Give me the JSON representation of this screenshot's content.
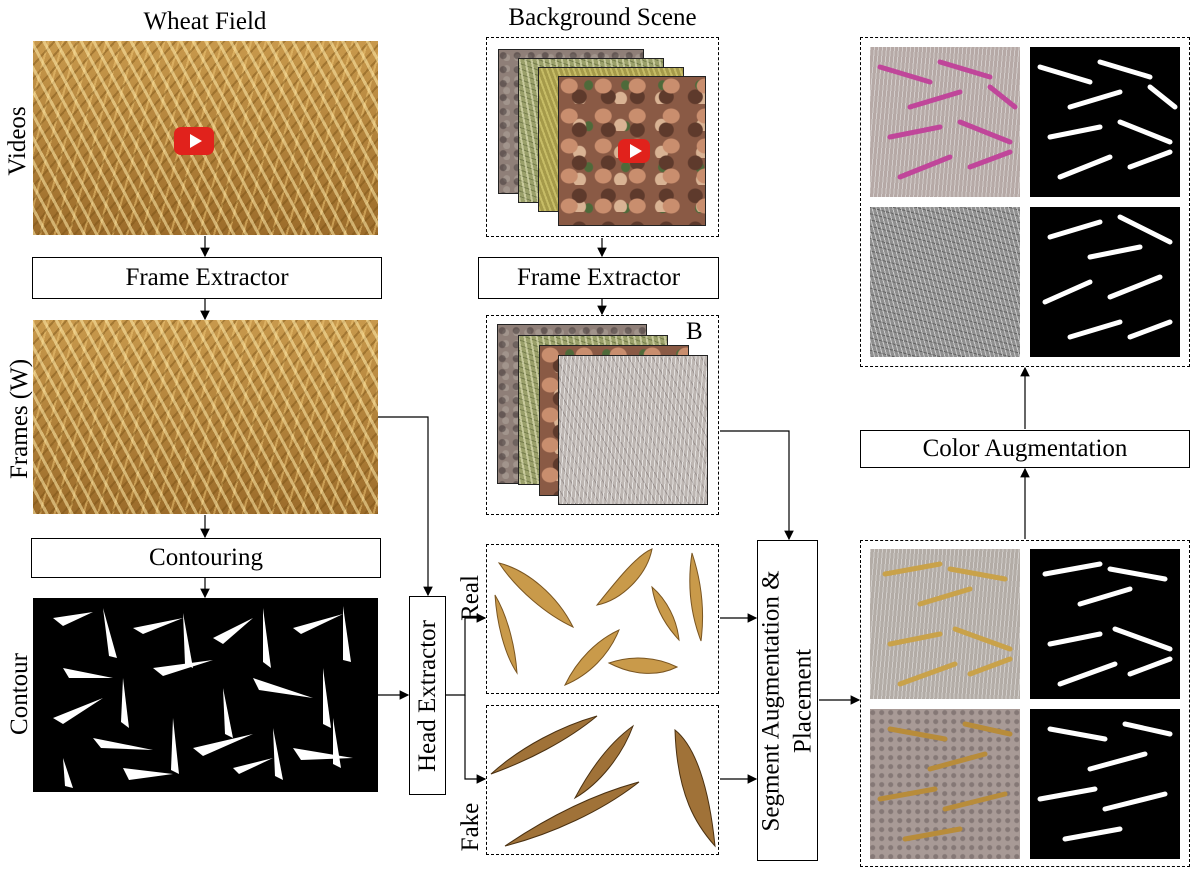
{
  "titles": {
    "wheat_field": "Wheat Field",
    "background_scene": "Background Scene"
  },
  "row_labels": {
    "videos": "Videos",
    "frames": "Frames (W)",
    "contour": "Contour"
  },
  "boxes": {
    "frame_extractor_left": "Frame Extractor",
    "contouring": "Contouring",
    "head_extractor": "Head Extractor",
    "frame_extractor_right": "Frame Extractor",
    "segment_augmentation_line1": "Segment Augmentation &",
    "segment_augmentation_line2": "Placement",
    "color_augmentation": "Color Augmentation"
  },
  "stack_labels": {
    "background_frames": "B"
  },
  "segment_labels": {
    "real": "Real",
    "fake": "Fake"
  },
  "colors": {
    "arrow": "#000000",
    "youtube_red": "#e1221c",
    "wheat_gold": "#c8994c",
    "pink_heads": "#c0469a"
  },
  "icons": {
    "video_play": "youtube-play-icon"
  }
}
